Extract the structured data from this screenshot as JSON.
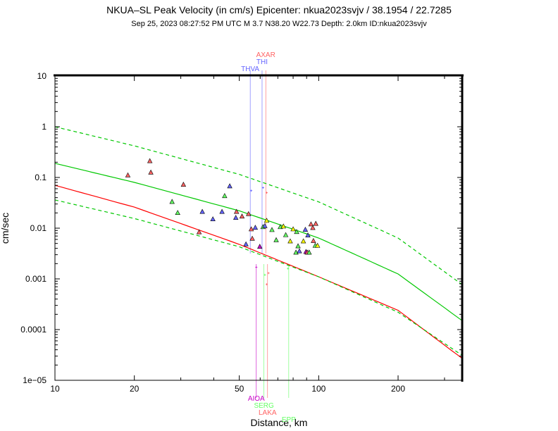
{
  "header": {
    "title": "NKUA–SL Peak Velocity (in cm/s) Epicenter: nkua2023svjv / 38.1954 / 22.7285",
    "subtitle": "Sep 25, 2023 08:27:52 PM UTC    M 3.7    N38.20 W22.73    Depth: 2.0km    ID:nkua2023svjv"
  },
  "chart_data": {
    "type": "scatter",
    "xlabel": "Distance, km",
    "ylabel": "cm/sec",
    "xscale": "log",
    "yscale": "log",
    "xlim": [
      10,
      350
    ],
    "ylim": [
      1e-05,
      10
    ],
    "grid": false,
    "x_ticks": [
      {
        "value": 10,
        "label": "10"
      },
      {
        "value": 20,
        "label": "20"
      },
      {
        "value": 50,
        "label": "50"
      },
      {
        "value": 100,
        "label": "100"
      },
      {
        "value": 200,
        "label": "200"
      }
    ],
    "y_ticks": [
      {
        "value": 10,
        "label": "10"
      },
      {
        "value": 1,
        "label": "1"
      },
      {
        "value": 0.1,
        "label": "0.1"
      },
      {
        "value": 0.01,
        "label": "0.01"
      },
      {
        "value": 0.001,
        "label": "0.001"
      },
      {
        "value": 0.0001,
        "label": "0.0001"
      },
      {
        "value": 1e-05,
        "label": "1e−05"
      }
    ],
    "curves": [
      {
        "color": "#00c800",
        "style": "dashed",
        "x": [
          10,
          20,
          50,
          100,
          200,
          350
        ],
        "y": [
          1.0,
          0.42,
          0.115,
          0.033,
          0.0064,
          0.00077
        ]
      },
      {
        "color": "#00c800",
        "style": "solid",
        "x": [
          10,
          20,
          50,
          100,
          200,
          350
        ],
        "y": [
          0.19,
          0.08,
          0.022,
          0.0064,
          0.00125,
          0.00015
        ]
      },
      {
        "color": "#ff0000",
        "style": "solid",
        "x": [
          10,
          20,
          50,
          100,
          200,
          350
        ],
        "y": [
          0.07,
          0.026,
          0.0048,
          0.0011,
          0.00024,
          2.7e-05
        ]
      },
      {
        "color": "#00c800",
        "style": "dashed",
        "x": [
          10,
          20,
          50,
          100,
          200,
          350
        ],
        "y": [
          0.036,
          0.0155,
          0.0043,
          0.0011,
          0.00022,
          3.1e-05
        ]
      }
    ],
    "station_lines": [
      {
        "label": "AXAR",
        "x": 63,
        "color": "#ff6464",
        "position": "top"
      },
      {
        "label": "THI",
        "x": 61,
        "color": "#6464ff",
        "position": "top"
      },
      {
        "label": "THVA",
        "x": 55,
        "color": "#6464ff",
        "position": "top"
      },
      {
        "label": "AIOA",
        "x": 58,
        "color": "#c800c8",
        "position": "bottom"
      },
      {
        "label": "SERG",
        "x": 62,
        "color": "#64ff64",
        "position": "bottom"
      },
      {
        "label": "LAKA",
        "x": 64,
        "color": "#ff6464",
        "position": "bottom"
      },
      {
        "label": "EPP",
        "x": 77,
        "color": "#64ff64",
        "position": "bottom"
      }
    ],
    "stations": [
      {
        "x": 18.9,
        "y": 0.11,
        "color": "#ff6464"
      },
      {
        "x": 22.9,
        "y": 0.21,
        "color": "#ff6464"
      },
      {
        "x": 23.1,
        "y": 0.125,
        "color": "#ff6464"
      },
      {
        "x": 30.7,
        "y": 0.072,
        "color": "#ff6464"
      },
      {
        "x": 27.8,
        "y": 0.033,
        "color": "#64ff64"
      },
      {
        "x": 29.2,
        "y": 0.02,
        "color": "#64ff64"
      },
      {
        "x": 35.2,
        "y": 0.0083,
        "color": "#ff6464"
      },
      {
        "x": 36.2,
        "y": 0.021,
        "color": "#6464ff"
      },
      {
        "x": 39.7,
        "y": 0.015,
        "color": "#6464ff"
      },
      {
        "x": 43.0,
        "y": 0.021,
        "color": "#6464ff"
      },
      {
        "x": 44.0,
        "y": 0.043,
        "color": "#64ff64"
      },
      {
        "x": 46.0,
        "y": 0.067,
        "color": "#6464ff"
      },
      {
        "x": 48.5,
        "y": 0.016,
        "color": "#6464ff"
      },
      {
        "x": 48.8,
        "y": 0.021,
        "color": "#ff6464"
      },
      {
        "x": 51.2,
        "y": 0.017,
        "color": "#ff6464"
      },
      {
        "x": 53.0,
        "y": 0.0048,
        "color": "#6464ff"
      },
      {
        "x": 54.2,
        "y": 0.019,
        "color": "#ff6464"
      },
      {
        "x": 55.5,
        "y": 0.0095,
        "color": "#ff6464"
      },
      {
        "x": 56.0,
        "y": 0.0062,
        "color": "#ff6464"
      },
      {
        "x": 57.5,
        "y": 0.0102,
        "color": "#6464ff"
      },
      {
        "x": 59.8,
        "y": 0.0043,
        "color": "#c800c8"
      },
      {
        "x": 61.5,
        "y": 0.0105,
        "color": "#64ff64"
      },
      {
        "x": 62.5,
        "y": 0.011,
        "color": "#6464ff"
      },
      {
        "x": 63.5,
        "y": 0.014,
        "color": "#ffff00"
      },
      {
        "x": 66.5,
        "y": 0.0092,
        "color": "#64ff64"
      },
      {
        "x": 69.0,
        "y": 0.0058,
        "color": "#64ff64"
      },
      {
        "x": 71.5,
        "y": 0.0105,
        "color": "#64ff64"
      },
      {
        "x": 73.5,
        "y": 0.0108,
        "color": "#ffff00"
      },
      {
        "x": 75.0,
        "y": 0.0073,
        "color": "#64ff64"
      },
      {
        "x": 78.0,
        "y": 0.0055,
        "color": "#ffff00"
      },
      {
        "x": 80.0,
        "y": 0.0095,
        "color": "#ffff00"
      },
      {
        "x": 82.5,
        "y": 0.0084,
        "color": "#64ff64"
      },
      {
        "x": 82.0,
        "y": 0.0033,
        "color": "#64ff64"
      },
      {
        "x": 83.5,
        "y": 0.0044,
        "color": "#64ff64"
      },
      {
        "x": 84.5,
        "y": 0.0035,
        "color": "#6464ff"
      },
      {
        "x": 87.5,
        "y": 0.0055,
        "color": "#ffff00"
      },
      {
        "x": 89.0,
        "y": 0.0093,
        "color": "#6464ff"
      },
      {
        "x": 89.5,
        "y": 0.0034,
        "color": "#c800c8"
      },
      {
        "x": 90.5,
        "y": 0.0033,
        "color": "#ff6464"
      },
      {
        "x": 92.0,
        "y": 0.0033,
        "color": "#64ff64"
      },
      {
        "x": 91.0,
        "y": 0.0072,
        "color": "#6464ff"
      },
      {
        "x": 93.5,
        "y": 0.0119,
        "color": "#ff6464"
      },
      {
        "x": 95.0,
        "y": 0.0101,
        "color": "#ff6464"
      },
      {
        "x": 95.5,
        "y": 0.0056,
        "color": "#ff6464"
      },
      {
        "x": 97.5,
        "y": 0.0122,
        "color": "#ff6464"
      },
      {
        "x": 97.0,
        "y": 0.0045,
        "color": "#64ff64"
      },
      {
        "x": 99.0,
        "y": 0.0045,
        "color": "#ffff00"
      }
    ],
    "small_markers": [
      {
        "x": 55.5,
        "y": 0.055,
        "color": "#6464ff"
      },
      {
        "x": 61.5,
        "y": 0.063,
        "color": "#6464ff"
      },
      {
        "x": 63.5,
        "y": 0.05,
        "color": "#ff6464"
      },
      {
        "x": 58.0,
        "y": 0.0017,
        "color": "#c800c8"
      },
      {
        "x": 62.5,
        "y": 0.0012,
        "color": "#64ff64"
      },
      {
        "x": 64.5,
        "y": 0.0013,
        "color": "#ff6464"
      },
      {
        "x": 63.5,
        "y": 0.00078,
        "color": "#ff6464"
      },
      {
        "x": 76.5,
        "y": 0.0016,
        "color": "#64ff64"
      }
    ]
  }
}
